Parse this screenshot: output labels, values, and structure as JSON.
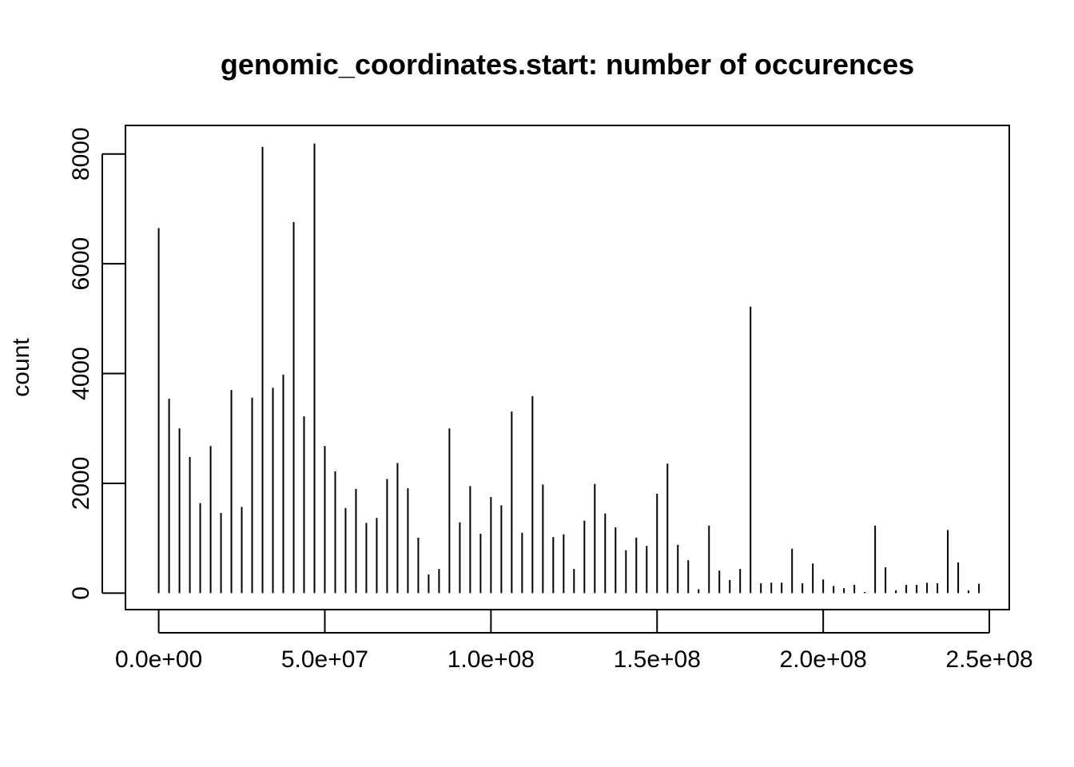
{
  "chart_data": {
    "type": "bar",
    "title": "genomic_coordinates.start: number of occurences",
    "xlabel": "",
    "ylabel": "count",
    "grid": false,
    "xlim": [
      -10000000,
      256000000
    ],
    "ylim": [
      -300,
      8520
    ],
    "x_ticks": [
      {
        "value": 0,
        "label": "0.0e+00"
      },
      {
        "value": 50000000,
        "label": "5.0e+07"
      },
      {
        "value": 100000000,
        "label": "1.0e+08"
      },
      {
        "value": 150000000,
        "label": "1.5e+08"
      },
      {
        "value": 200000000,
        "label": "2.0e+08"
      },
      {
        "value": 250000000,
        "label": "2.5e+08"
      }
    ],
    "y_ticks": [
      {
        "value": 0,
        "label": "0"
      },
      {
        "value": 2000,
        "label": "2000"
      },
      {
        "value": 4000,
        "label": "4000"
      },
      {
        "value": 6000,
        "label": "6000"
      },
      {
        "value": 8000,
        "label": "8000"
      }
    ],
    "x": [
      0,
      3130000,
      6250000,
      9380000,
      12500000,
      15630000,
      18750000,
      21880000,
      25000000,
      28130000,
      31250000,
      34380000,
      37500000,
      40630000,
      43750000,
      46880000,
      50000000,
      53130000,
      56250000,
      59380000,
      62500000,
      65630000,
      68750000,
      71880000,
      75000000,
      78130000,
      81250000,
      84380000,
      87500000,
      90630000,
      93750000,
      96880000,
      100000000,
      103130000,
      106250000,
      109380000,
      112500000,
      115630000,
      118750000,
      121880000,
      125000000,
      128130000,
      131250000,
      134380000,
      137500000,
      140630000,
      143750000,
      146880000,
      150000000,
      153130000,
      156250000,
      159380000,
      162500000,
      165630000,
      168750000,
      171880000,
      175000000,
      178130000,
      181250000,
      184380000,
      187500000,
      190630000,
      193750000,
      196880000,
      200000000,
      203130000,
      206250000,
      209380000,
      212500000,
      215630000,
      218750000,
      221880000,
      225000000,
      228130000,
      231250000,
      234380000,
      237500000,
      240630000,
      243750000,
      246880000
    ],
    "values": [
      6650,
      3540,
      3000,
      2480,
      1640,
      2680,
      1460,
      3700,
      1570,
      3560,
      8130,
      3740,
      3980,
      6760,
      3220,
      8190,
      2680,
      2220,
      1550,
      1900,
      1280,
      1370,
      2080,
      2370,
      1910,
      1010,
      340,
      440,
      3000,
      1290,
      1950,
      1080,
      1750,
      1600,
      3310,
      1100,
      3590,
      1980,
      1020,
      1070,
      440,
      1320,
      1990,
      1450,
      1200,
      780,
      1010,
      860,
      1810,
      2360,
      880,
      600,
      70,
      1230,
      410,
      240,
      440,
      5220,
      180,
      190,
      190,
      810,
      180,
      540,
      250,
      130,
      90,
      150,
      20,
      1230,
      470,
      50,
      150,
      150,
      190,
      180,
      1150,
      560,
      50,
      170
    ]
  }
}
